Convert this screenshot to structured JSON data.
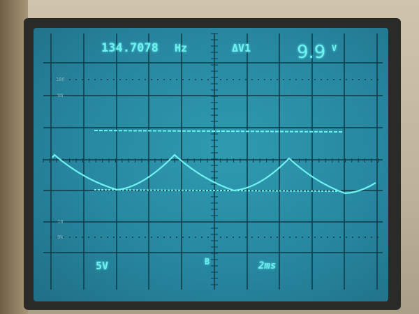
{
  "display": {
    "frequency": "134.7078",
    "frequency_unit": "Hz",
    "measurement_label": "ΔV1",
    "measurement_value": "9.9",
    "measurement_unit": "V",
    "volts_per_div": "5V",
    "trigger_symbol": "B",
    "time_per_div": "2ms"
  },
  "graticule_labels": {
    "p100": "100",
    "p90": "90",
    "p10": "10",
    "p0": "0%"
  },
  "colors": {
    "trace": "#6ff2f0",
    "screen": "#2787a0",
    "grid": "#0f3a48"
  }
}
